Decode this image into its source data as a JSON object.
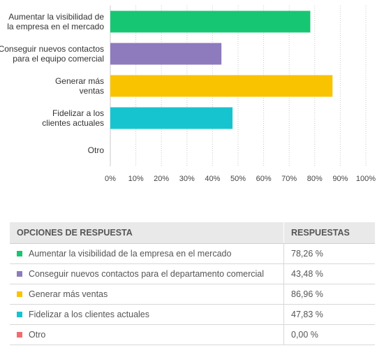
{
  "chart_data": {
    "type": "bar",
    "orientation": "horizontal",
    "categories": [
      [
        "Aumentar la visibilidad de",
        "la empresa en el mercado"
      ],
      [
        "Conseguir nuevos contactos",
        "para el equipo comercial"
      ],
      [
        "Generar más",
        "ventas"
      ],
      [
        "Fidelizar a los",
        "clientes actuales"
      ],
      [
        "Otro"
      ]
    ],
    "values": [
      78.26,
      43.48,
      86.96,
      47.83,
      0.0
    ],
    "colors": [
      "#17c672",
      "#8d7bbd",
      "#f9c300",
      "#16c4cf",
      "#f26b6f"
    ],
    "xlim": [
      0,
      100
    ],
    "xticks": [
      "0%",
      "10%",
      "20%",
      "30%",
      "40%",
      "50%",
      "60%",
      "70%",
      "80%",
      "90%",
      "100%"
    ],
    "grid": "vertical dotted"
  },
  "table": {
    "headers": [
      "OPCIONES DE RESPUESTA",
      "RESPUESTAS"
    ],
    "rows": [
      {
        "option": "Aumentar la visibilidad de la empresa en el mercado",
        "response": "78,26 %",
        "color": "#17c672"
      },
      {
        "option": "Conseguir nuevos contactos para el departamento comercial",
        "response": "43,48 %",
        "color": "#8d7bbd"
      },
      {
        "option": "Generar más ventas",
        "response": "86,96 %",
        "color": "#f9c300"
      },
      {
        "option": "Fidelizar a los clientes actuales",
        "response": "47,83 %",
        "color": "#16c4cf"
      },
      {
        "option": "Otro",
        "response": "0,00 %",
        "color": "#f26b6f"
      }
    ]
  }
}
